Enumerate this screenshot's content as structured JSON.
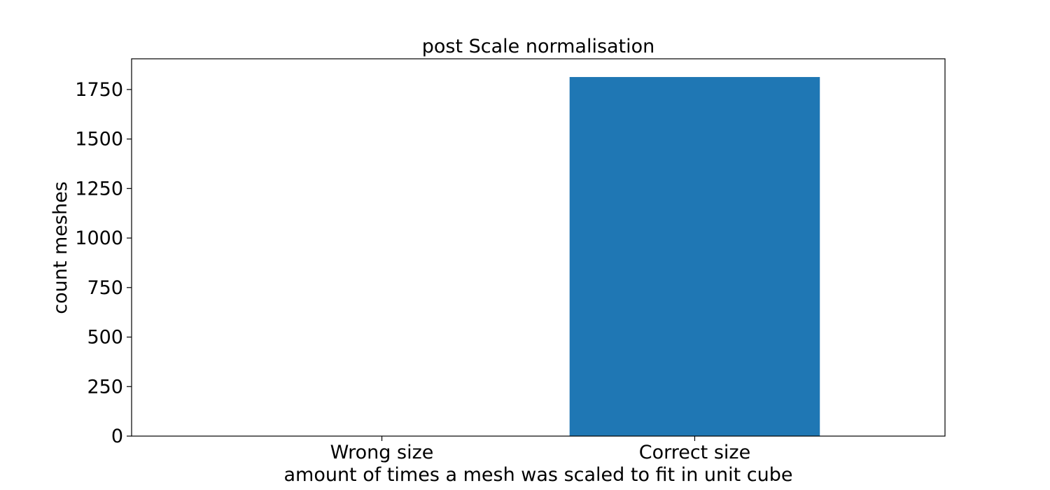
{
  "chart_data": {
    "type": "bar",
    "title": "post Scale normalisation",
    "xlabel": "amount of times a mesh was scaled to fit in unit cube",
    "ylabel": "count meshes",
    "categories": [
      "Wrong size",
      "Correct size"
    ],
    "values": [
      0,
      1813
    ],
    "ylim": [
      0,
      1905
    ],
    "yticks": [
      0,
      250,
      500,
      750,
      1000,
      1250,
      1500,
      1750
    ],
    "bar_color": "#1f77b4",
    "grid": false
  }
}
